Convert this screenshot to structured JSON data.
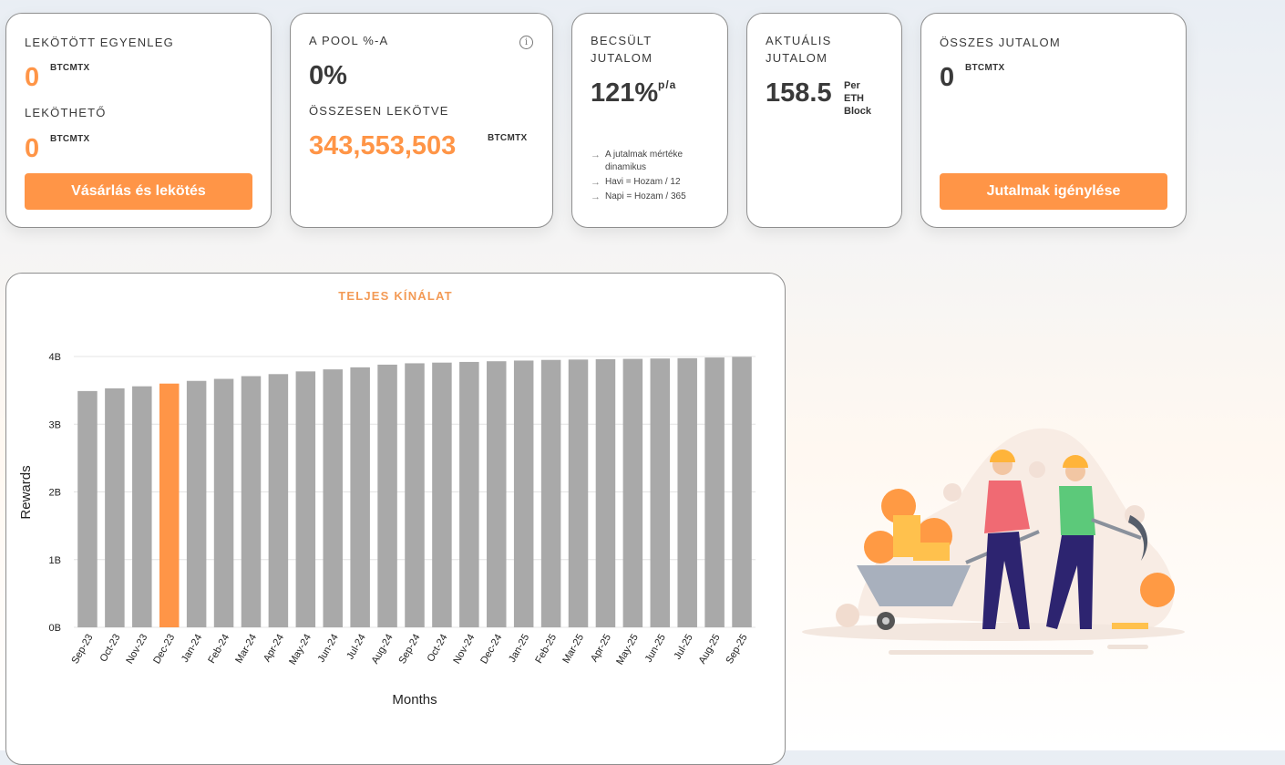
{
  "cards": {
    "locked_balance": {
      "label": "LEKÖTÖTT EGYENLEG",
      "value": "0",
      "unit": "BTCMTX"
    },
    "lockable": {
      "label": "LEKÖTHETŐ",
      "value": "0",
      "unit": "BTCMTX"
    },
    "buy_button": "Vásárlás és lekötés",
    "pool": {
      "label": "A POOL %-A",
      "value": "0%"
    },
    "total_locked": {
      "label": "ÖSSZESEN LEKÖTVE",
      "value": "343,553,503",
      "unit": "BTCMTX"
    },
    "estimated": {
      "label_1": "BECSÜLT",
      "label_2": "JUTALOM",
      "value": "121%",
      "unit": "p/a",
      "notes": [
        "A jutalmak mértéke",
        "dinamikus",
        "Havi = Hozam / 12",
        "Napi = Hozam / 365"
      ]
    },
    "current": {
      "label_1": "AKTUÁLIS",
      "label_2": "JUTALOM",
      "value": "158.5",
      "unit_1": "Per",
      "unit_2": "ETH",
      "unit_3": "Block"
    },
    "total_rewards": {
      "label": "ÖSSZES JUTALOM",
      "value": "0",
      "unit": "BTCMTX"
    },
    "claim_button": "Jutalmak igénylése"
  },
  "colors": {
    "accent": "#ff9547",
    "bar": "#a9a9a9",
    "text": "#3a3a3a"
  },
  "chart_data": {
    "type": "bar",
    "title": "TELJES KÍNÁLAT",
    "xlabel": "Months",
    "ylabel": "Rewards",
    "ylim": [
      0,
      4000000000
    ],
    "yticks": [
      0,
      1000000000,
      2000000000,
      3000000000,
      4000000000
    ],
    "ytick_labels": [
      "0B",
      "1B",
      "2B",
      "3B",
      "4B"
    ],
    "highlight_index": 3,
    "categories": [
      "Sep-23",
      "Oct-23",
      "Nov-23",
      "Dec-23",
      "Jan-24",
      "Feb-24",
      "Mar-24",
      "Apr-24",
      "May-24",
      "Jun-24",
      "Jul-24",
      "Aug-24",
      "Sep-24",
      "Oct-24",
      "Nov-24",
      "Dec-24",
      "Jan-25",
      "Feb-25",
      "Mar-25",
      "Apr-25",
      "May-25",
      "Jun-25",
      "Jul-25",
      "Aug-25",
      "Sep-25"
    ],
    "values": [
      3490000000,
      3530000000,
      3560000000,
      3600000000,
      3640000000,
      3670000000,
      3710000000,
      3740000000,
      3780000000,
      3810000000,
      3840000000,
      3880000000,
      3900000000,
      3910000000,
      3920000000,
      3930000000,
      3940000000,
      3950000000,
      3955000000,
      3960000000,
      3965000000,
      3970000000,
      3975000000,
      3985000000,
      3995000000
    ],
    "grid": true,
    "legend": "none"
  }
}
